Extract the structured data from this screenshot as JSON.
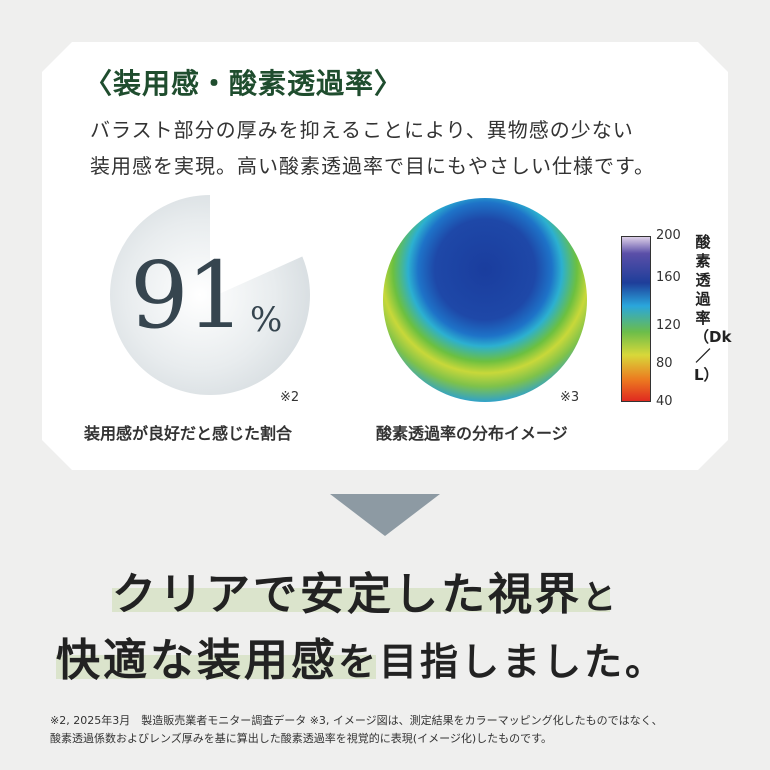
{
  "card": {
    "title": "〈装用感・酸素透過率〉",
    "description": [
      "バラスト部分の厚みを抑えることにより、異物感の少ない",
      "装用感を実現。高い酸素透過率で目にもやさしい仕様です。"
    ],
    "stat": {
      "value": "91",
      "unit": "%",
      "fraction": 0.91,
      "note": "※2",
      "caption": "装用感が良好だと感じた割合"
    },
    "lens": {
      "note": "※3",
      "caption": "酸素透過率の分布イメージ"
    },
    "scale": {
      "ticks": [
        "200",
        "160",
        "120",
        "80",
        "40"
      ],
      "label": "酸素透過率（Dk／L）",
      "colors": [
        "#ddd0e8",
        "#1e3e9a",
        "#2aa6dc",
        "#6cbd4a",
        "#d8d83a",
        "#e02a20"
      ]
    }
  },
  "headline": {
    "line1a": "クリアで安定した視界",
    "line1b": "と",
    "line2a": "快適な装用感",
    "line2b": "を目指しました。"
  },
  "footnote": [
    "※2, 2025年3月　製造販売業者モニター調査データ ※3, イメージ図は、測定結果をカラーマッピング化したものではなく、",
    "酸素透過係数およびレンズ厚みを基に算出した酸素透過率を視覚的に表現(イメージ化)したものです。"
  ]
}
